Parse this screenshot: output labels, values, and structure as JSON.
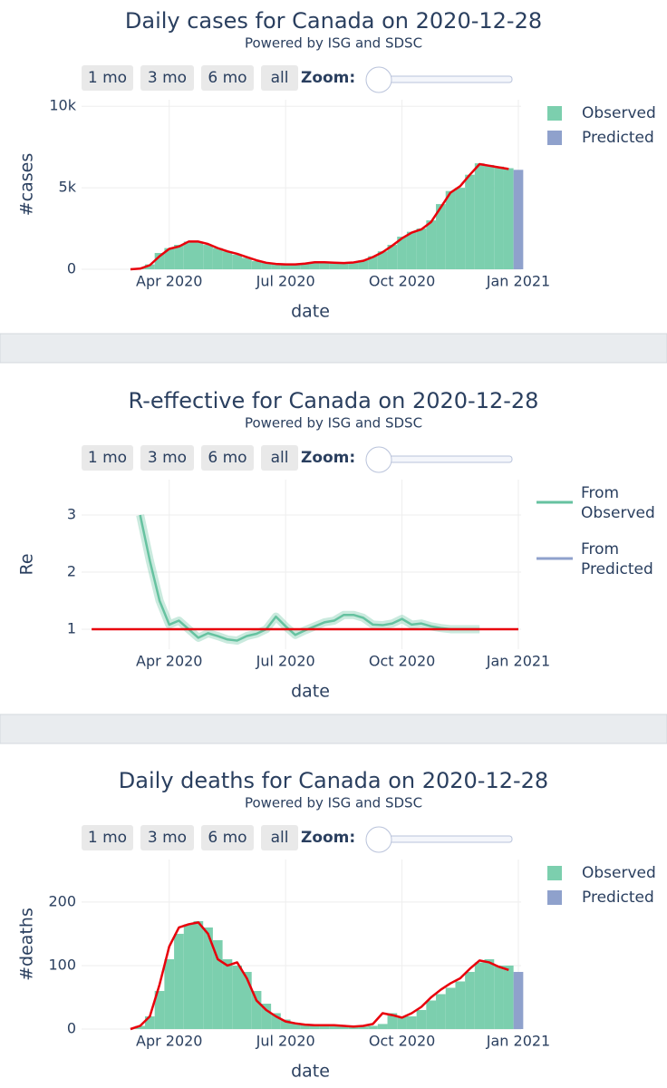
{
  "chart_data": [
    {
      "type": "bar",
      "title": "Daily cases for Canada on 2020-12-28",
      "subtitle": "Powered by ISG and SDSC",
      "buttons": [
        "1 mo",
        "3 mo",
        "6 mo",
        "all"
      ],
      "zoom_label": "Zoom:",
      "x_label": "date",
      "y_label": "#cases",
      "xlim": [
        0.74,
        12.07
      ],
      "ylim": [
        0,
        10400
      ],
      "xticks": [
        {
          "value": 3,
          "label": "Apr 2020"
        },
        {
          "value": 6,
          "label": "Jul 2020"
        },
        {
          "value": 9,
          "label": "Oct 2020"
        },
        {
          "value": 12,
          "label": "Jan 2021"
        }
      ],
      "yticks": [
        0,
        {
          "value": 5000,
          "label": "5k"
        },
        {
          "value": 10000,
          "label": "10k"
        }
      ],
      "grid": true,
      "x": [
        2,
        2.25,
        2.5,
        2.75,
        3,
        3.25,
        3.5,
        3.75,
        4,
        4.25,
        4.5,
        4.75,
        5,
        5.25,
        5.5,
        5.75,
        6,
        6.25,
        6.5,
        6.75,
        7,
        7.25,
        7.5,
        7.75,
        8,
        8.25,
        8.5,
        8.75,
        9,
        9.25,
        9.5,
        9.75,
        10,
        10.25,
        10.5,
        10.75,
        11,
        11.25,
        11.5,
        11.75
      ],
      "series": [
        {
          "name": "Observed",
          "type": "bar",
          "color": "#7ccfae",
          "values": [
            0,
            50,
            300,
            1000,
            1300,
            1500,
            1700,
            1700,
            1500,
            1300,
            1100,
            900,
            700,
            500,
            400,
            350,
            300,
            300,
            350,
            450,
            450,
            400,
            400,
            450,
            550,
            800,
            1100,
            1500,
            2000,
            2300,
            2500,
            3000,
            4000,
            4800,
            5000,
            5800,
            6500,
            6400,
            6300,
            6200
          ]
        },
        {
          "name": "Predicted",
          "type": "bar",
          "color": "#8fa1cc",
          "x": [
            12
          ],
          "values": [
            6100
          ]
        },
        {
          "type": "line",
          "color": "#e8000b",
          "values": [
            0,
            40,
            250,
            800,
            1250,
            1400,
            1700,
            1700,
            1550,
            1300,
            1100,
            950,
            750,
            550,
            400,
            330,
            300,
            300,
            350,
            430,
            430,
            400,
            380,
            420,
            520,
            750,
            1050,
            1450,
            1900,
            2250,
            2450,
            2900,
            3800,
            4700,
            5100,
            5800,
            6450,
            6350,
            6250,
            6150
          ]
        }
      ]
    },
    {
      "type": "line",
      "title": "R-effective for Canada on 2020-12-28",
      "subtitle": "Powered by ISG and SDSC",
      "buttons": [
        "1 mo",
        "3 mo",
        "6 mo",
        "all"
      ],
      "zoom_label": "Zoom:",
      "x_label": "date",
      "y_label": "Re",
      "xlim": [
        0.74,
        12.07
      ],
      "ylim": [
        0.65,
        3.62
      ],
      "xticks": [
        {
          "value": 3,
          "label": "Apr 2020"
        },
        {
          "value": 6,
          "label": "Jul 2020"
        },
        {
          "value": 9,
          "label": "Oct 2020"
        },
        {
          "value": 12,
          "label": "Jan 2021"
        }
      ],
      "yticks": [
        1,
        2,
        3
      ],
      "grid": true,
      "x": [
        2.25,
        2.5,
        2.75,
        3,
        3.25,
        3.5,
        3.75,
        4,
        4.25,
        4.5,
        4.75,
        5,
        5.25,
        5.5,
        5.75,
        6,
        6.25,
        6.5,
        6.75,
        7,
        7.25,
        7.5,
        7.75,
        8,
        8.25,
        8.5,
        8.75,
        9,
        9.25,
        9.5,
        9.75,
        10,
        10.25,
        10.5,
        10.75,
        11
      ],
      "series": [
        {
          "name": "From Observed",
          "type": "line",
          "color": "#66c2a0",
          "values": [
            3.0,
            2.2,
            1.5,
            1.08,
            1.15,
            1.0,
            0.85,
            0.93,
            0.88,
            0.82,
            0.8,
            0.88,
            0.92,
            1.0,
            1.22,
            1.05,
            0.9,
            0.98,
            1.05,
            1.12,
            1.15,
            1.25,
            1.25,
            1.2,
            1.08,
            1.07,
            1.1,
            1.18,
            1.08,
            1.1,
            1.05,
            1.02,
            1.0,
            1.0,
            1.0,
            1.0
          ]
        },
        {
          "name": "From Predicted",
          "type": "line",
          "color": "#8fa1cc",
          "x": [],
          "values": []
        },
        {
          "type": "line",
          "color": "#e8000b",
          "x": [
            1,
            12
          ],
          "values": [
            1,
            1
          ]
        }
      ]
    },
    {
      "type": "bar",
      "title": "Daily deaths for Canada on 2020-12-28",
      "subtitle": "Powered by ISG and SDSC",
      "buttons": [
        "1 mo",
        "3 mo",
        "6 mo",
        "all"
      ],
      "zoom_label": "Zoom:",
      "x_label": "date",
      "y_label": "#deaths",
      "xlim": [
        0.74,
        12.07
      ],
      "ylim": [
        0,
        267
      ],
      "xticks": [
        {
          "value": 3,
          "label": "Apr 2020"
        },
        {
          "value": 6,
          "label": "Jul 2020"
        },
        {
          "value": 9,
          "label": "Oct 2020"
        },
        {
          "value": 12,
          "label": "Jan 2021"
        }
      ],
      "yticks": [
        0,
        100,
        200
      ],
      "grid": true,
      "x": [
        2,
        2.25,
        2.5,
        2.75,
        3,
        3.25,
        3.5,
        3.75,
        4,
        4.25,
        4.5,
        4.75,
        5,
        5.25,
        5.5,
        5.75,
        6,
        6.25,
        6.5,
        6.75,
        7,
        7.25,
        7.5,
        7.75,
        8,
        8.25,
        8.5,
        8.75,
        9,
        9.25,
        9.5,
        9.75,
        10,
        10.25,
        10.5,
        10.75,
        11,
        11.25,
        11.5,
        11.75
      ],
      "series": [
        {
          "name": "Observed",
          "type": "bar",
          "color": "#7ccfae",
          "values": [
            0,
            5,
            20,
            60,
            110,
            150,
            165,
            170,
            160,
            140,
            110,
            100,
            90,
            60,
            40,
            25,
            15,
            10,
            8,
            6,
            6,
            5,
            5,
            5,
            4,
            5,
            8,
            25,
            20,
            20,
            30,
            45,
            55,
            65,
            75,
            90,
            105,
            110,
            100,
            100
          ]
        },
        {
          "name": "Predicted",
          "type": "bar",
          "color": "#8fa1cc",
          "x": [
            12
          ],
          "values": [
            90
          ]
        },
        {
          "type": "line",
          "color": "#e8000b",
          "values": [
            0,
            5,
            20,
            70,
            130,
            160,
            165,
            168,
            150,
            110,
            100,
            105,
            80,
            45,
            30,
            20,
            12,
            9,
            7,
            6,
            6,
            6,
            5,
            4,
            5,
            8,
            25,
            22,
            18,
            25,
            35,
            50,
            62,
            72,
            80,
            95,
            108,
            105,
            98,
            93
          ]
        }
      ]
    }
  ]
}
